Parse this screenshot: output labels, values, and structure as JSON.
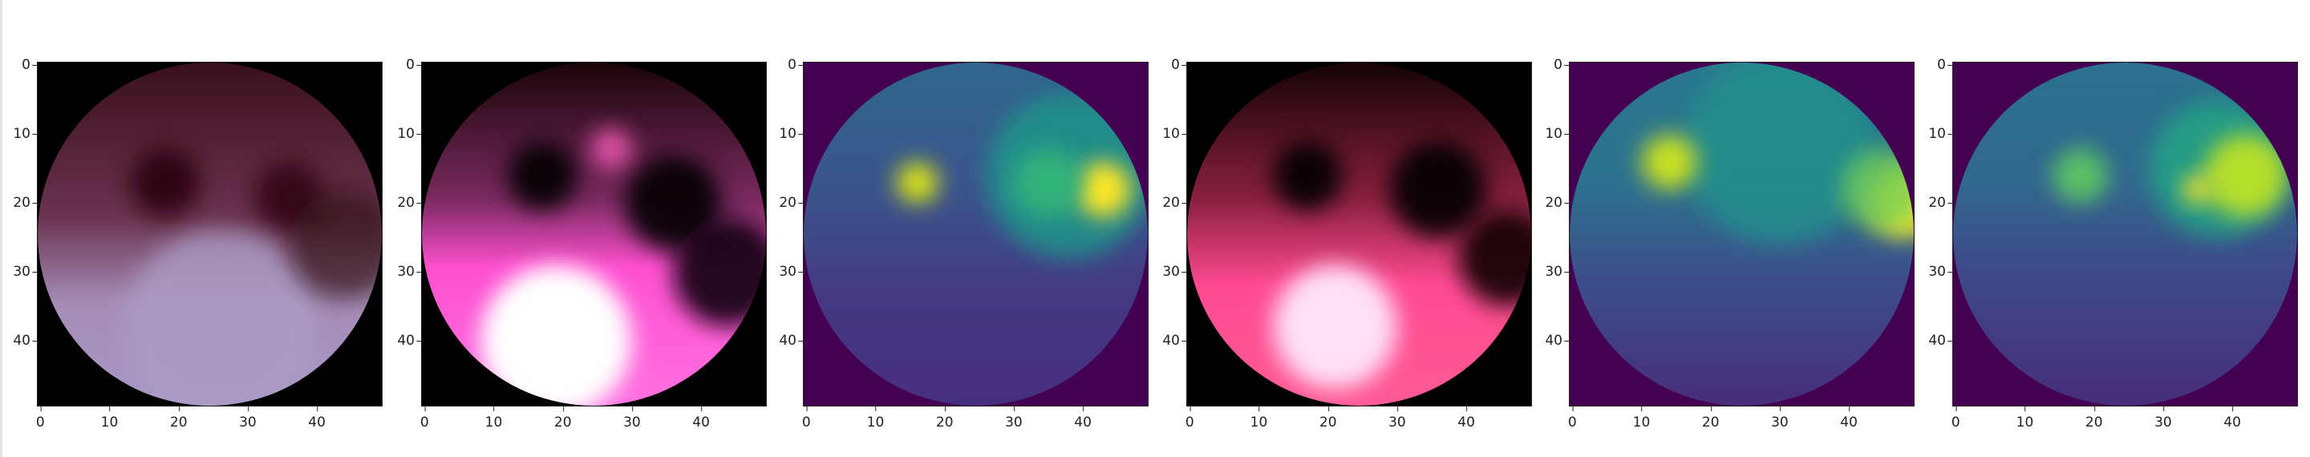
{
  "chart_data": [
    {
      "type": "image",
      "colormap": "rgb",
      "xlim": [
        -0.5,
        49.5
      ],
      "ylim": [
        49.5,
        -0.5
      ],
      "xticks": [
        "0",
        "10",
        "20",
        "30",
        "40"
      ],
      "yticks": [
        "0",
        "10",
        "20",
        "30",
        "40"
      ]
    },
    {
      "type": "image",
      "colormap": "rgb",
      "xlim": [
        -0.5,
        49.5
      ],
      "ylim": [
        49.5,
        -0.5
      ],
      "xticks": [
        "0",
        "10",
        "20",
        "30",
        "40"
      ],
      "yticks": [
        "0",
        "10",
        "20",
        "30",
        "40"
      ]
    },
    {
      "type": "heatmap",
      "colormap": "viridis",
      "xlim": [
        -0.5,
        49.5
      ],
      "ylim": [
        49.5,
        -0.5
      ],
      "xticks": [
        "0",
        "10",
        "20",
        "30",
        "40"
      ],
      "yticks": [
        "0",
        "10",
        "20",
        "30",
        "40"
      ]
    },
    {
      "type": "image",
      "colormap": "rgb",
      "xlim": [
        -0.5,
        49.5
      ],
      "ylim": [
        49.5,
        -0.5
      ],
      "xticks": [
        "0",
        "10",
        "20",
        "30",
        "40"
      ],
      "yticks": [
        "0",
        "10",
        "20",
        "30",
        "40"
      ]
    },
    {
      "type": "heatmap",
      "colormap": "viridis",
      "xlim": [
        -0.5,
        49.5
      ],
      "ylim": [
        49.5,
        -0.5
      ],
      "xticks": [
        "0",
        "10",
        "20",
        "30",
        "40"
      ],
      "yticks": [
        "0",
        "10",
        "20",
        "30",
        "40"
      ]
    },
    {
      "type": "heatmap",
      "colormap": "viridis",
      "xlim": [
        -0.5,
        49.5
      ],
      "ylim": [
        49.5,
        -0.5
      ],
      "xticks": [
        "0",
        "10",
        "20",
        "30",
        "40"
      ],
      "yticks": [
        "0",
        "10",
        "20",
        "30",
        "40"
      ]
    }
  ]
}
